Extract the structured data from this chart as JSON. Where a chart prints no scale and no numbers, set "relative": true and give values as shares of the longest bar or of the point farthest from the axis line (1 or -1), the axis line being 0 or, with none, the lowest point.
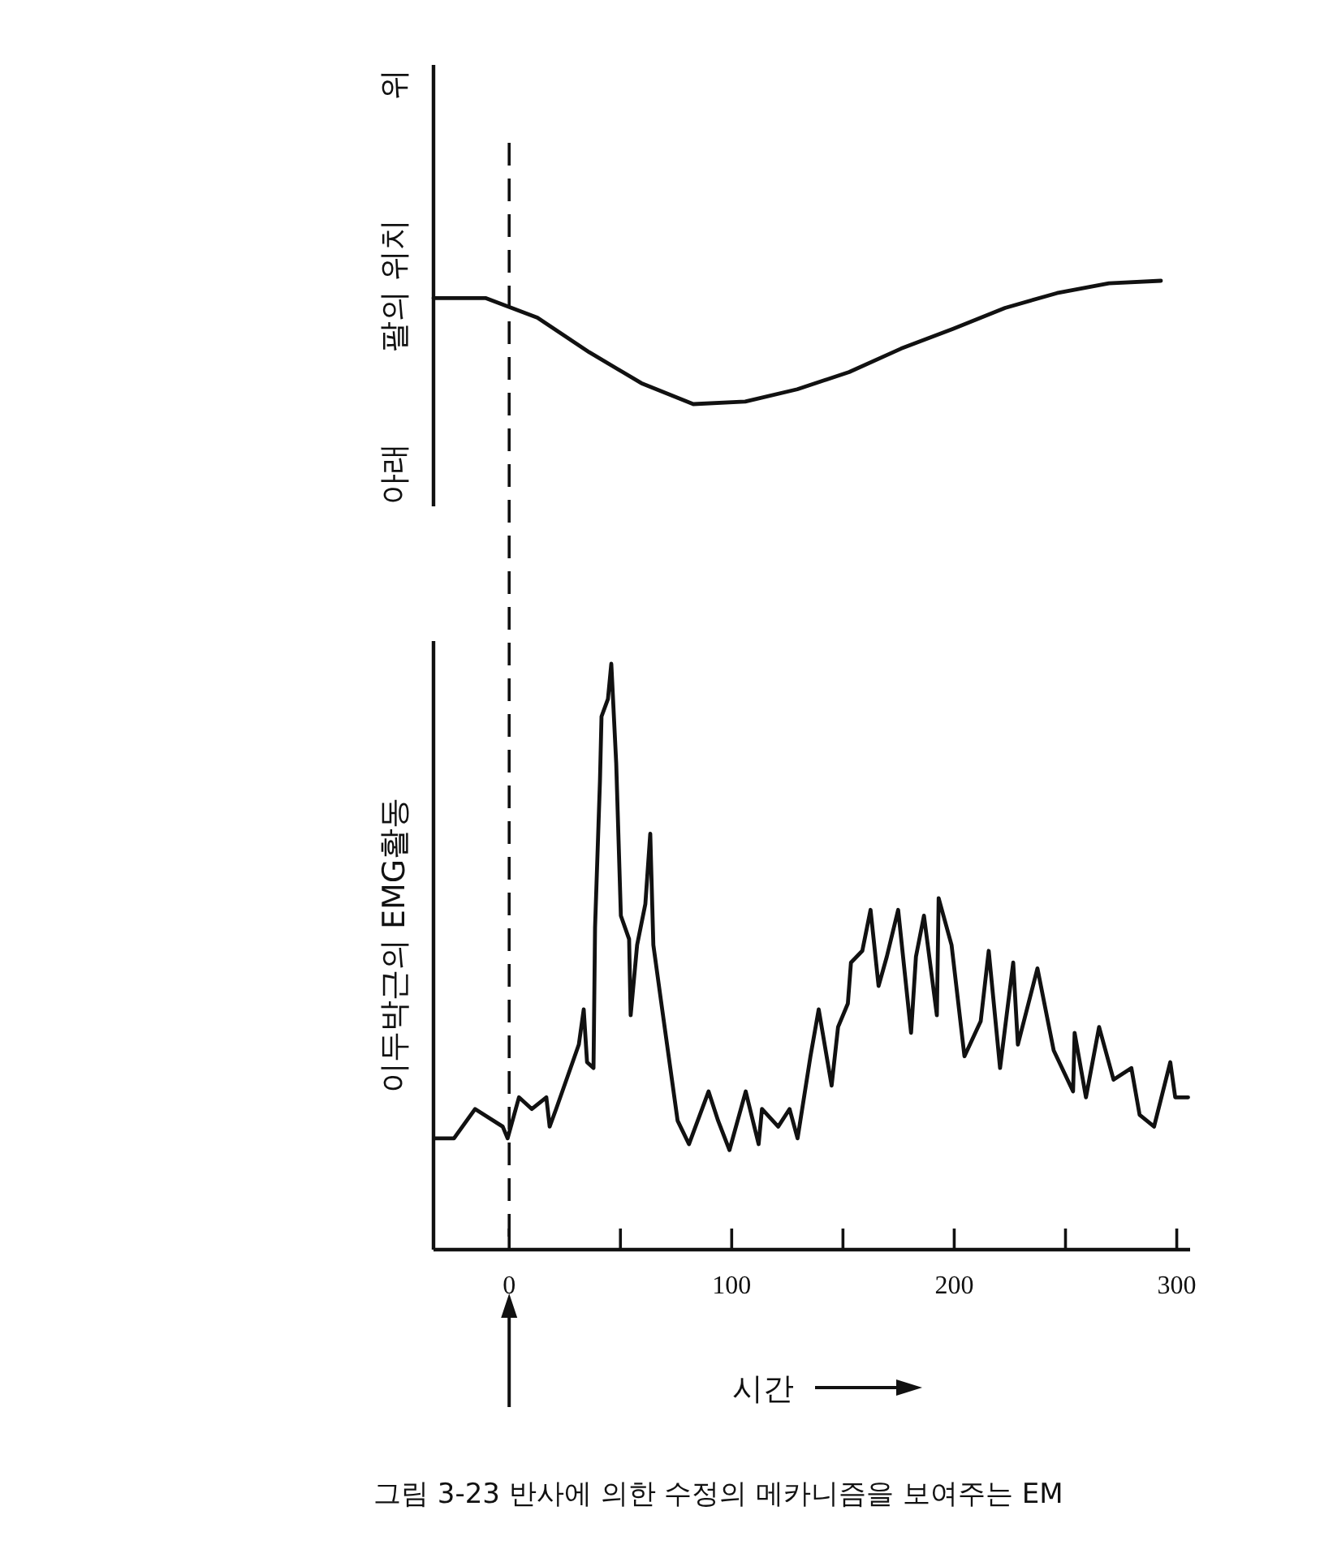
{
  "chart_data": [
    {
      "type": "line",
      "relative": true,
      "ylabel": "팔의 위치",
      "annotations": [
        "위",
        "아래"
      ],
      "color": "#111111",
      "categories": [
        null,
        null,
        null,
        null,
        null,
        null,
        null,
        null,
        null,
        null,
        null,
        null,
        null,
        null,
        null
      ],
      "values": [
        0.86,
        0.86,
        0.7,
        0.42,
        0.17,
        0,
        0.02,
        0.12,
        0.26,
        0.45,
        0.61,
        0.78,
        0.9,
        0.98,
        1
      ]
    },
    {
      "type": "line",
      "relative": true,
      "ylabel": "이두박근의 EMG활동",
      "xlabel": "시간",
      "xlim": [
        -34,
        306
      ],
      "color": "#111111",
      "xticks": [
        0,
        {
          "value": 50,
          "label": null
        },
        100,
        {
          "value": 150,
          "label": null
        },
        200,
        {
          "value": 250,
          "label": null
        },
        300
      ],
      "annotations": [
        "그림 3-23 반사에 의한 수정의 메카니즘을 보여주는 EM"
      ],
      "ref_lines": [
        {
          "axis": "x",
          "value": 0,
          "line_style": "dashed",
          "color": "#111111"
        }
      ],
      "x": [
        -33.5,
        -24.8,
        -15.3,
        -2.9,
        -0.7,
        4.4,
        10.2,
        16.7,
        18.2,
        21.1,
        31.3,
        33.5,
        35.0,
        37.9,
        38.6,
        40.8,
        41.5,
        44.4,
        45.9,
        48.1,
        50.2,
        53.9,
        54.6,
        57.5,
        61.2,
        63.4,
        64.8,
        68.4,
        75.7,
        80.8,
        89.6,
        93.9,
        99.0,
        106.3,
        112.1,
        113.6,
        120.9,
        126.0,
        129.6,
        135.4,
        139.1,
        144.9,
        147.8,
        152.2,
        153.6,
        158.7,
        162.4,
        166.0,
        169.7,
        174.8,
        180.6,
        182.8,
        186.4,
        192.2,
        193.0,
        198.8,
        204.6,
        211.9,
        215.5,
        220.6,
        226.5,
        228.6,
        237.4,
        244.7,
        253.4,
        254.1,
        259.2,
        265.1,
        271.6,
        279.6,
        283.3,
        289.8,
        297.1,
        299.3,
        305.1
      ],
      "values": [
        0.19,
        0.19,
        0.24,
        0.21,
        0.19,
        0.26,
        0.24,
        0.26,
        0.21,
        0.24,
        0.35,
        0.41,
        0.32,
        0.31,
        0.55,
        0.8,
        0.91,
        0.94,
        1,
        0.83,
        0.57,
        0.53,
        0.4,
        0.52,
        0.59,
        0.71,
        0.52,
        0.42,
        0.22,
        0.18,
        0.27,
        0.22,
        0.17,
        0.27,
        0.18,
        0.24,
        0.21,
        0.24,
        0.19,
        0.33,
        0.41,
        0.28,
        0.38,
        0.42,
        0.49,
        0.51,
        0.58,
        0.45,
        0.5,
        0.58,
        0.37,
        0.5,
        0.57,
        0.4,
        0.6,
        0.52,
        0.33,
        0.39,
        0.51,
        0.31,
        0.49,
        0.35,
        0.48,
        0.34,
        0.27,
        0.37,
        0.26,
        0.38,
        0.29,
        0.31,
        0.23,
        0.21,
        0.32,
        0.26,
        0.26
      ]
    }
  ]
}
